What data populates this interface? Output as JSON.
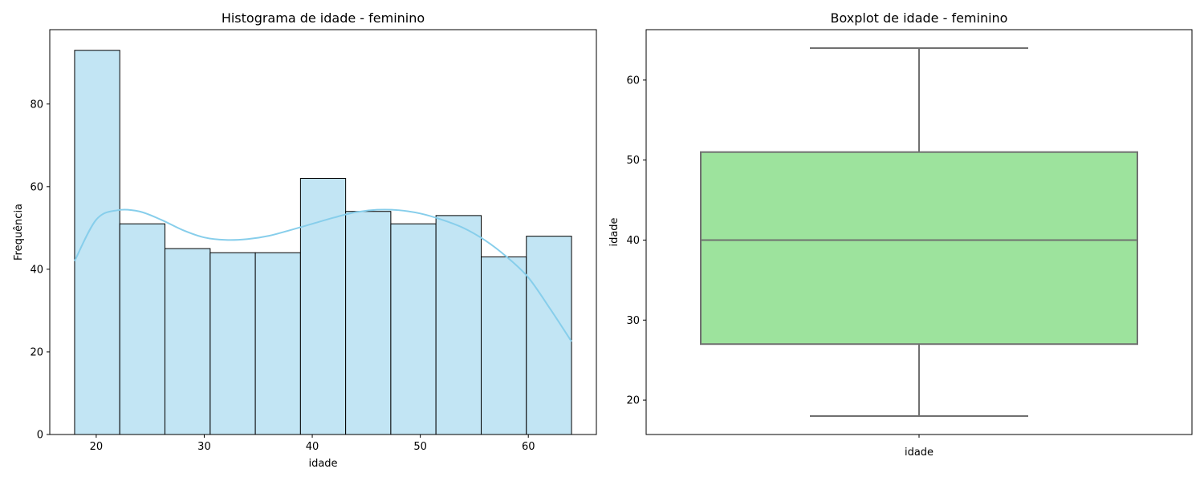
{
  "chart_data": [
    {
      "type": "bar",
      "subtype": "histogram",
      "title": "Histograma de idade - feminino",
      "xlabel": "idade",
      "ylabel": "Frequência",
      "xlim": [
        15.7,
        66.3
      ],
      "ylim": [
        0,
        98
      ],
      "xticks": [
        20,
        30,
        40,
        50,
        60
      ],
      "yticks": [
        0,
        20,
        40,
        60,
        80
      ],
      "bin_edges": [
        18.0,
        22.18,
        26.36,
        30.55,
        34.73,
        38.91,
        43.09,
        47.27,
        51.45,
        55.64,
        59.82,
        64.0
      ],
      "values": [
        93,
        51,
        45,
        44,
        44,
        62,
        54,
        51,
        53,
        43,
        48
      ],
      "bar_color": "#c2e5f4",
      "edge_color": "#000000",
      "kde": {
        "color": "#87ceeb",
        "x": [
          18,
          20,
          22,
          24,
          26,
          28,
          30,
          32,
          34,
          36,
          38,
          40,
          42,
          44,
          46,
          48,
          50,
          52,
          54,
          56,
          58,
          60,
          62,
          64
        ],
        "y": [
          42,
          52,
          54.3,
          54,
          52,
          49.5,
          47.7,
          47.1,
          47.3,
          48.1,
          49.5,
          51,
          52.5,
          53.8,
          54.4,
          54.3,
          53.5,
          52,
          50,
          47,
          43,
          38,
          30.5,
          22.5
        ]
      },
      "grid": false,
      "legend": "none"
    },
    {
      "type": "boxplot",
      "title": "Boxplot de idade - feminino",
      "xlabel": "idade",
      "ylabel": "idade",
      "ylim": [
        15.7,
        66.3
      ],
      "yticks": [
        20,
        30,
        40,
        50,
        60
      ],
      "categories": [
        "idade"
      ],
      "stats": {
        "whisker_low": 18,
        "q1": 27,
        "median": 40,
        "q3": 51,
        "whisker_high": 64
      },
      "box_color": "#9de39d",
      "line_color": "#707070",
      "grid": false,
      "legend": "none"
    }
  ]
}
